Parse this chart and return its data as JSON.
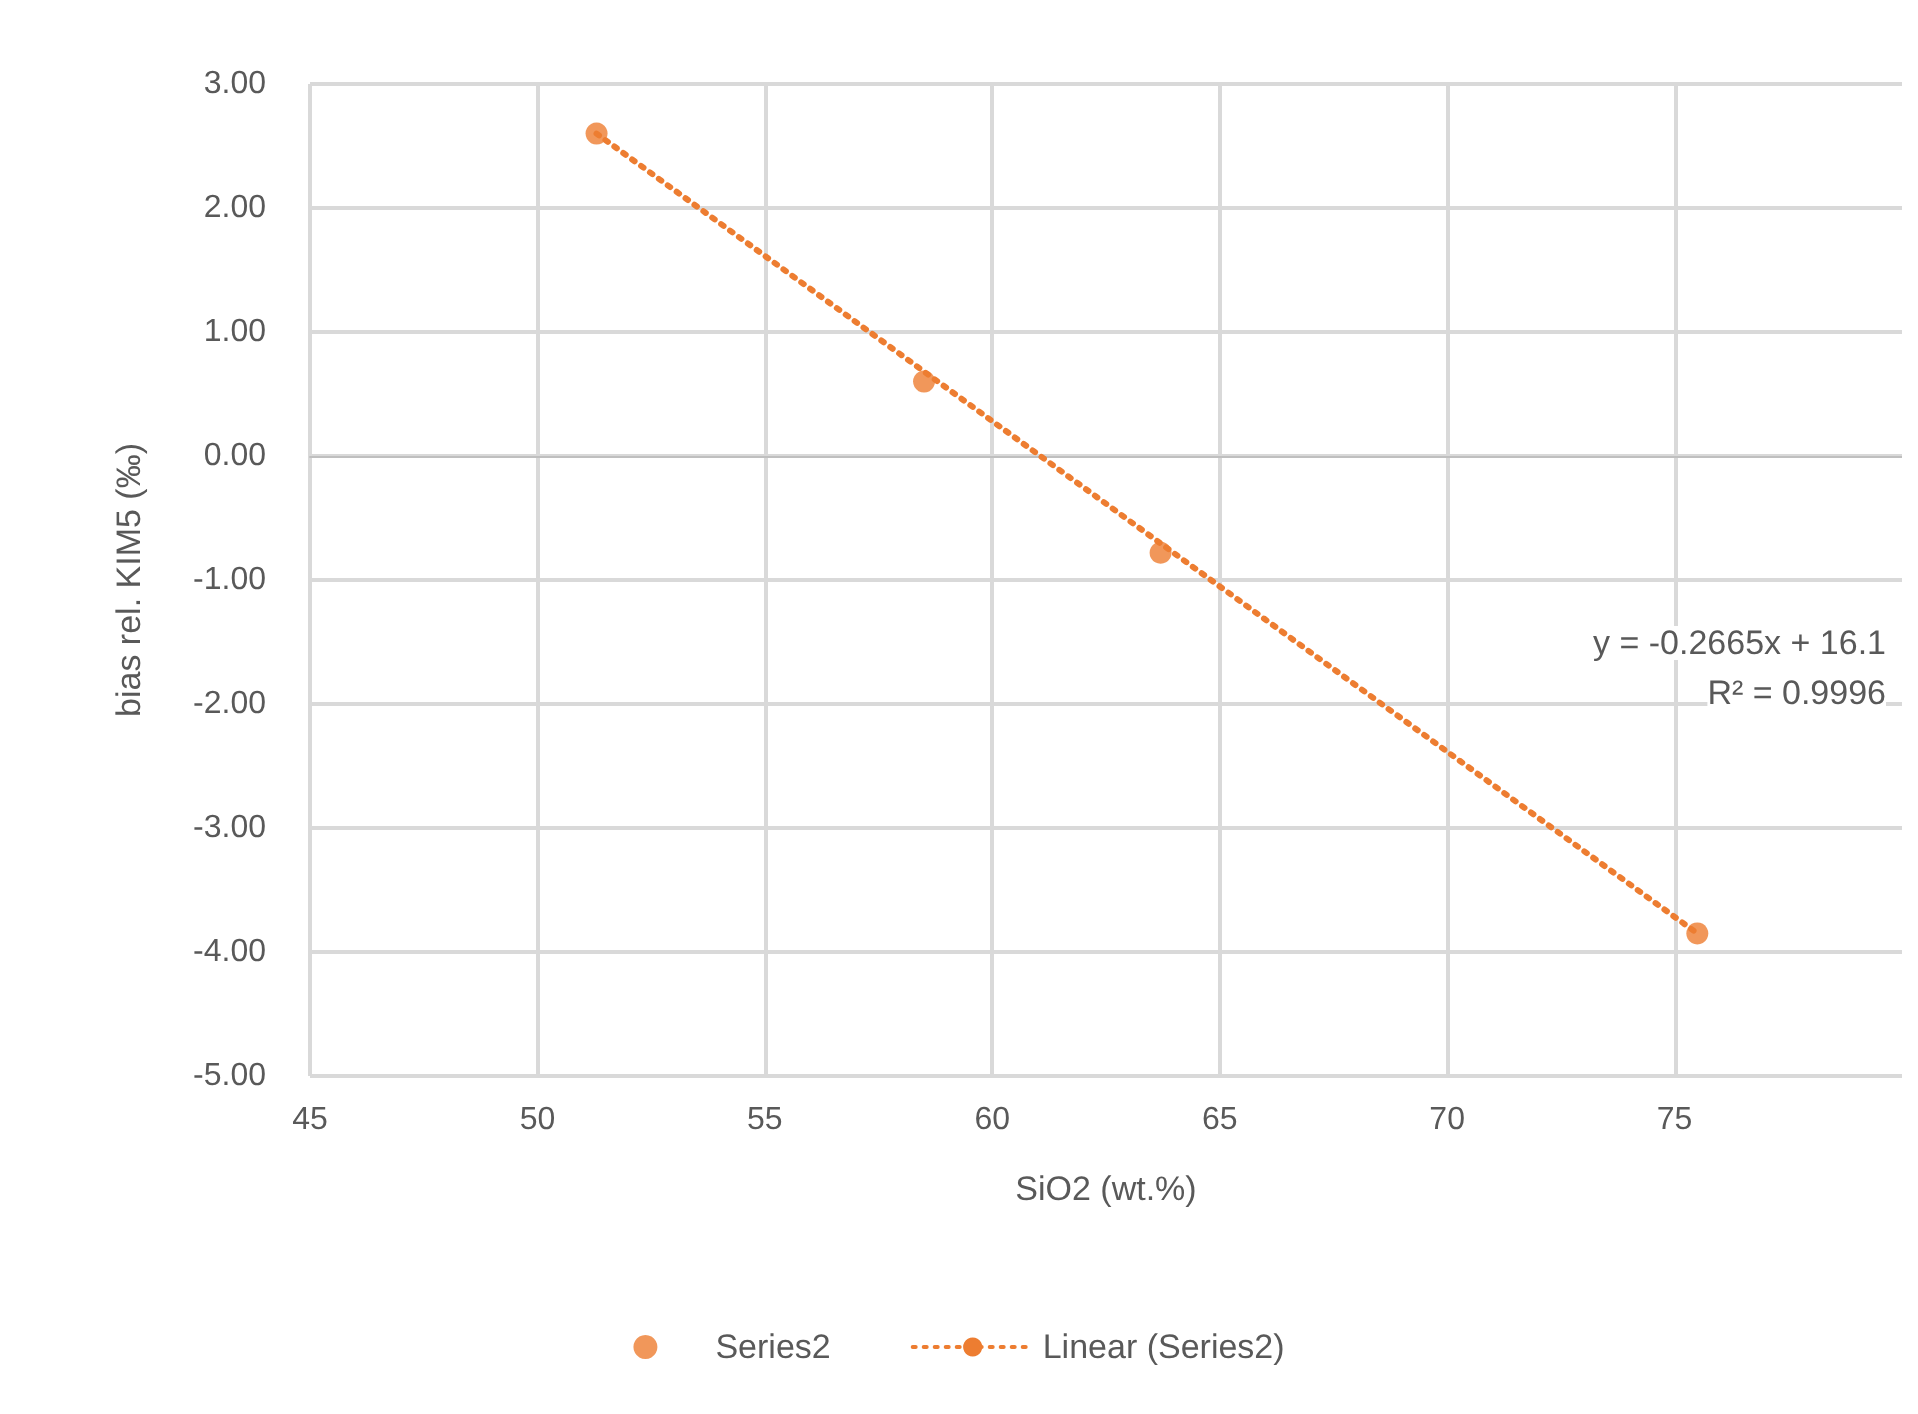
{
  "chart_data": {
    "type": "scatter",
    "xlabel": "SiO2 (wt.%)",
    "ylabel": "bias rel. KIM5 (‰)",
    "series": [
      {
        "name": "Series2",
        "color": "#ed7d31",
        "x": [
          51.3,
          58.5,
          63.7,
          75.5
        ],
        "values": [
          2.6,
          0.6,
          -0.78,
          -3.85
        ],
        "marker": "circle"
      },
      {
        "name": "Linear (Series2)",
        "type": "line",
        "color": "#ed7d31",
        "x": [
          51.3,
          75.5
        ],
        "values": [
          2.6,
          -3.85
        ],
        "marker": "none",
        "line_style": "dotted"
      }
    ],
    "xlim": [
      45,
      80
    ],
    "xticks": [
      45,
      50,
      55,
      60,
      65,
      70,
      75
    ],
    "ylim": [
      -5,
      3
    ],
    "yticks": [
      {
        "value": -5,
        "label": "-5.00"
      },
      {
        "value": -4,
        "label": "-4.00"
      },
      {
        "value": -3,
        "label": "-3.00"
      },
      {
        "value": -2,
        "label": "-2.00"
      },
      {
        "value": -1,
        "label": "-1.00"
      },
      {
        "value": 0,
        "label": "0.00"
      },
      {
        "value": 1,
        "label": "1.00"
      },
      {
        "value": 2,
        "label": "2.00"
      },
      {
        "value": 3,
        "label": "3.00"
      }
    ],
    "annotations": [
      "y = -0.2665x + 16.1",
      "R² = 0.9996"
    ],
    "grid": true,
    "legend": "bottom"
  }
}
